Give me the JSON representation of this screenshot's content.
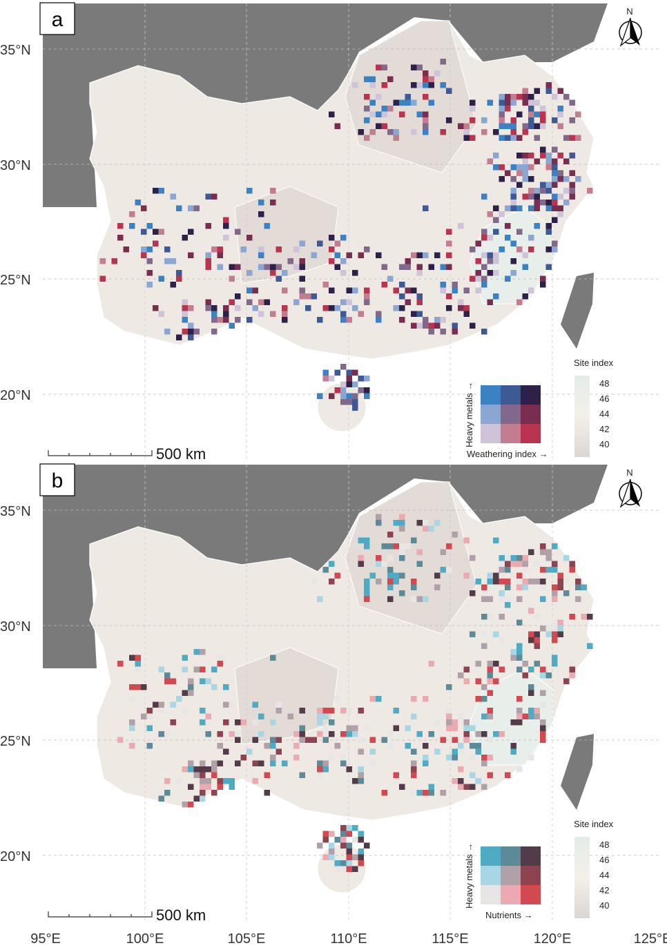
{
  "latitude_labels": [
    "35°N",
    "30°N",
    "25°N",
    "20°N"
  ],
  "longitude_labels": [
    "95°E",
    "100°E",
    "105°E",
    "110°E",
    "115°E",
    "120°E",
    "125°E"
  ],
  "panels": [
    {
      "label": "a",
      "scale_bar": "500 km",
      "north": "N",
      "legend": {
        "y_label": "Heavy metals →",
        "x_label": "Weathering index →",
        "colors": [
          [
            "#3b82c4",
            "#3d5a95",
            "#2e2149"
          ],
          [
            "#8aa6d2",
            "#82698c",
            "#7a2e4f"
          ],
          [
            "#cfc3da",
            "#c47c90",
            "#b9344f"
          ]
        ]
      },
      "site_index": {
        "title": "Site index",
        "ticks": [
          "48",
          "46",
          "44",
          "42",
          "40"
        ]
      }
    },
    {
      "label": "b",
      "scale_bar": "500 km",
      "north": "N",
      "legend": {
        "y_label": "Heavy metals →",
        "x_label": "Nutrients →",
        "colors": [
          [
            "#4faac4",
            "#5c8a98",
            "#523c4a"
          ],
          [
            "#a9d6e4",
            "#b0a0a8",
            "#8e4450"
          ],
          [
            "#e8e6e4",
            "#eaaab0",
            "#d24a50"
          ]
        ]
      },
      "site_index": {
        "title": "Site index",
        "ticks": [
          "48",
          "46",
          "44",
          "42",
          "40"
        ]
      }
    }
  ],
  "colors": {
    "neighbor_land": "#7a7a7a",
    "study_area": "#efe9e3",
    "study_area_dark": "#e2dbd6",
    "site_index_ramp": [
      "#e4ece8",
      "#f4f0e8",
      "#dcd6d2"
    ]
  }
}
